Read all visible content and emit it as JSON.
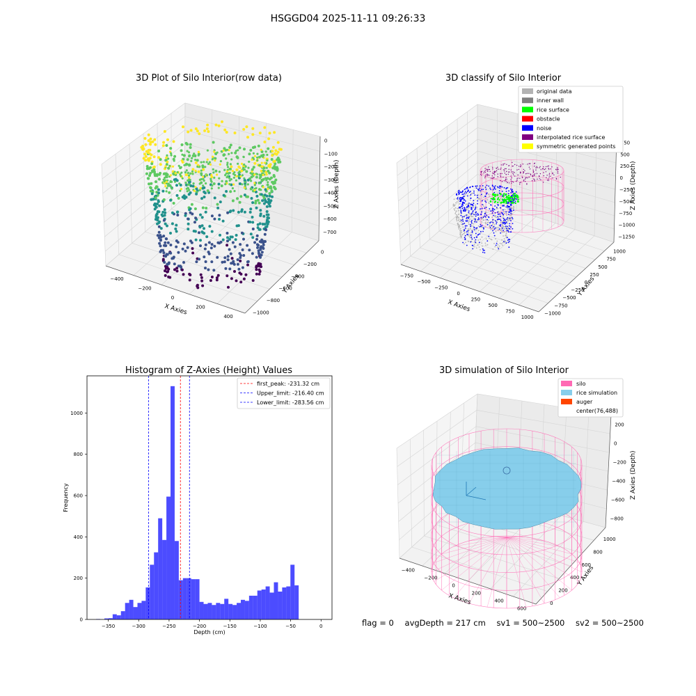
{
  "suptitle": "HSGGD04 2025-11-11 09:26:33",
  "chart_data": [
    {
      "type": "scatter3d",
      "title": "3D Plot of Silo Interior(row data)",
      "xlabel": "X Axies",
      "ylabel": "Y Axies",
      "zlabel": "Z Axies (Depth)",
      "x_ticks": [
        "−400",
        "−200",
        "0",
        "200",
        "400"
      ],
      "y_ticks": [
        "−1000",
        "−800",
        "−600",
        "−400",
        "−200",
        "0"
      ],
      "z_ticks": [
        "0",
        "−100",
        "−200",
        "−300",
        "−400",
        "−500",
        "−600",
        "−700"
      ],
      "xlim": [
        -480,
        480
      ],
      "ylim": [
        -1050,
        50
      ],
      "zlim": [
        -760,
        30
      ],
      "colormap": [
        "#440154",
        "#3b528b",
        "#21918c",
        "#5ec962",
        "#fde725"
      ]
    },
    {
      "type": "scatter3d",
      "title": "3D classify of Silo Interior",
      "xlabel": "X Axies",
      "ylabel": "Y Axies",
      "zlabel": "Z Axies (Depth)",
      "x_ticks": [
        "−750",
        "−500",
        "−250",
        "0",
        "250",
        "500",
        "750",
        "1000"
      ],
      "y_ticks": [
        "−1000",
        "−750",
        "−500",
        "−250",
        "0",
        "250",
        "500",
        "750",
        "1000"
      ],
      "z_ticks": [
        "750",
        "500",
        "250",
        "0",
        "−250",
        "−500",
        "−750",
        "−1000",
        "−1250"
      ],
      "legend": [
        {
          "label": "original data",
          "color": "#b3b3b3"
        },
        {
          "label": "inner wall",
          "color": "#808080"
        },
        {
          "label": "rice surface",
          "color": "#00ff00"
        },
        {
          "label": "obstacle",
          "color": "#ff0000"
        },
        {
          "label": "noise",
          "color": "#0000ff"
        },
        {
          "label": "interpolated rice surface",
          "color": "#800080"
        },
        {
          "label": "symmetric generated points",
          "color": "#ffff00"
        }
      ],
      "legend_loc": "upper right",
      "silo_color": "#ff69b4"
    },
    {
      "type": "bar",
      "title": "Histogram of Z-Axies (Height) Values",
      "xlabel": "Depth (cm)",
      "ylabel": "Frequency",
      "bar_color": "#0000ff",
      "x_ticks": [
        -350,
        -300,
        -250,
        -200,
        -150,
        -100,
        -50,
        0
      ],
      "y_ticks": [
        0,
        200,
        400,
        600,
        800,
        1000
      ],
      "xlim": [
        -385,
        18
      ],
      "ylim": [
        0,
        1180
      ],
      "bin_width": 6.8,
      "bins_start": -370,
      "values": [
        2,
        0,
        5,
        6,
        25,
        20,
        40,
        80,
        95,
        60,
        80,
        90,
        155,
        265,
        325,
        490,
        385,
        595,
        1130,
        380,
        190,
        200,
        200,
        195,
        195,
        85,
        75,
        80,
        70,
        80,
        75,
        100,
        75,
        70,
        80,
        95,
        90,
        115,
        115,
        140,
        145,
        160,
        130,
        180,
        135,
        155,
        160,
        265,
        165
      ],
      "vlines": [
        {
          "label": "first_peak: -231.32 cm",
          "x": -231.32,
          "color": "#ff0000"
        },
        {
          "label": "Upper_limit: -216.40 cm",
          "x": -216.4,
          "color": "#0000ff"
        },
        {
          "label": "Lower_limit: -283.56 cm",
          "x": -283.56,
          "color": "#0000ff"
        }
      ],
      "legend_loc": "upper right"
    },
    {
      "type": "surface3d",
      "title": "3D simulation of Silo Interior",
      "xlabel": "X Axies",
      "ylabel": "Y Axies",
      "zlabel": "Z Axies (Depth)",
      "x_ticks": [
        "−400",
        "−200",
        "0",
        "200",
        "400",
        "600"
      ],
      "y_ticks": [
        "0",
        "200",
        "400",
        "600",
        "800",
        "1000"
      ],
      "z_ticks": [
        "200",
        "0",
        "−200",
        "−400",
        "−600",
        "−800"
      ],
      "legend": [
        {
          "label": "silo",
          "color": "#ff69b4"
        },
        {
          "label": "rice simulation",
          "color": "#87ceeb"
        },
        {
          "label": "auger",
          "color": "#ff4500"
        },
        {
          "label": "center(76,488)",
          "color": ""
        }
      ],
      "legend_loc": "upper right"
    }
  ],
  "status": {
    "flag": "flag = 0",
    "avg_depth": "avgDepth = 217 cm",
    "sv1": "sv1 = 500~2500",
    "sv2": "sv2 = 500~2500"
  }
}
